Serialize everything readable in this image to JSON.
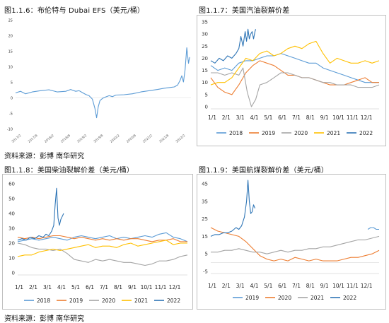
{
  "titles": {
    "p1": "图1.1.6：布伦特与 Dubai EFS（美元/桶）",
    "p2": "图1.1.7：美国汽油裂解价差",
    "p3": "图1.1.8：美国柴油裂解价差（美元/桶）",
    "p4": "图1.1.9：美国航煤裂解价差（美元/桶）"
  },
  "source1": "资料来源：彭博 南华研究",
  "source2": "资料来源：彭博 南华研究",
  "chart_data": [
    {
      "id": "p1",
      "type": "line",
      "title": "图1.1.6：布伦特与 Dubai EFS（美元/桶）",
      "ylim": [
        -10,
        25
      ],
      "yticks": [
        "25",
        "20",
        "15",
        "10",
        "5",
        "0",
        "-5",
        "-10"
      ],
      "xticks": [
        "2017/2",
        "2017/8",
        "2018/2",
        "2018/8",
        "2019/2",
        "2019/8",
        "2020/2",
        "2020/8",
        "2021/2",
        "2021/8",
        "2022/2"
      ],
      "series": [
        {
          "color": "#5b9bd5",
          "x": [
            0,
            0.3,
            0.6,
            1,
            1.5,
            2,
            2.5,
            3,
            3.3,
            3.6,
            3.8,
            4,
            4.2,
            4.4,
            4.6,
            4.75,
            4.85,
            4.95,
            5.05,
            5.2,
            5.4,
            5.6,
            5.8,
            6,
            6.5,
            7,
            7.5,
            8,
            8.5,
            8.9,
            9.2,
            9.5,
            9.7,
            9.85,
            9.95,
            10.05,
            10.15,
            10.25,
            10.35,
            10.42
          ],
          "values": [
            1.5,
            2.0,
            1.2,
            1.8,
            2.2,
            2.5,
            1.8,
            2.0,
            2.6,
            2.0,
            2.2,
            1.6,
            1.0,
            0.6,
            -0.5,
            -3.5,
            -6.5,
            -3.0,
            -1.0,
            -0.3,
            0.2,
            0.6,
            0.3,
            0.8,
            0.9,
            1.2,
            1.8,
            2.2,
            2.6,
            3.0,
            3.2,
            3.4,
            4.0,
            5.5,
            7.0,
            5.0,
            9.0,
            16.0,
            11.0,
            13.0
          ]
        }
      ]
    },
    {
      "id": "p2",
      "type": "line",
      "title": "图1.1.7：美国汽油裂解价差",
      "ylim": [
        0,
        35
      ],
      "yticks": [
        "35",
        "30",
        "25",
        "20",
        "15",
        "10",
        "5",
        "0"
      ],
      "categories": [
        "1/1",
        "2/1",
        "3/1",
        "4/1",
        "5/1",
        "6/1",
        "7/1",
        "8/1",
        "9/1",
        "10/1",
        "11/1",
        "12/1"
      ],
      "series": [
        {
          "name": "2018",
          "color": "#5b9bd5",
          "x": [
            0,
            0.5,
            1,
            1.5,
            2,
            2.5,
            3,
            3.5,
            4,
            4.5,
            5,
            5.5,
            6,
            6.5,
            7,
            7.5,
            8,
            8.5,
            9,
            9.5,
            10,
            10.5,
            11,
            11.5,
            12
          ],
          "values": [
            17,
            15,
            16,
            15,
            18,
            19,
            19,
            20,
            21,
            21,
            22,
            21,
            20,
            19,
            18,
            18,
            16,
            15,
            14,
            13,
            12,
            11,
            10,
            10,
            10
          ]
        },
        {
          "name": "2019",
          "color": "#ed7d31",
          "x": [
            0,
            0.5,
            1,
            1.5,
            2,
            2.5,
            3,
            3.5,
            4,
            4.5,
            5,
            5.5,
            6,
            6.5,
            7,
            7.5,
            8,
            8.5,
            9,
            9.5,
            10,
            10.5,
            11,
            11.5,
            12
          ],
          "values": [
            12,
            8,
            6,
            5,
            9,
            14,
            17,
            19,
            18,
            17,
            15,
            13,
            13,
            12,
            12,
            11,
            10,
            9,
            9,
            9,
            10,
            11,
            12,
            10,
            10
          ]
        },
        {
          "name": "2020",
          "color": "#a5a5a5",
          "x": [
            0,
            0.5,
            1,
            1.5,
            2,
            2.3,
            2.6,
            2.9,
            3.2,
            3.5,
            4,
            4.5,
            5,
            5.5,
            6,
            6.5,
            7,
            7.5,
            8,
            8.5,
            9,
            9.5,
            10,
            10.5,
            11,
            11.5,
            12
          ],
          "values": [
            14,
            14,
            13,
            14,
            13,
            16,
            6,
            0,
            3,
            9,
            10,
            12,
            14,
            14,
            13,
            12,
            12,
            11,
            10,
            10,
            9,
            9,
            9,
            8,
            8,
            8,
            9
          ]
        },
        {
          "name": "2021",
          "color": "#ffc000",
          "x": [
            0,
            0.5,
            1,
            1.5,
            2,
            2.5,
            3,
            3.5,
            4,
            4.5,
            5,
            5.5,
            6,
            6.5,
            7,
            7.5,
            8,
            8.5,
            9,
            9.5,
            10,
            10.5,
            11,
            11.5,
            12
          ],
          "values": [
            9,
            10,
            10,
            12,
            16,
            20,
            19,
            22,
            23,
            21,
            22,
            24,
            25,
            24,
            26,
            27,
            22,
            18,
            20,
            19,
            18,
            18,
            19,
            18,
            19
          ]
        },
        {
          "name": "2022",
          "color": "#2e75b6",
          "x": [
            0,
            0.3,
            0.6,
            0.9,
            1.2,
            1.5,
            1.8,
            2.0,
            2.15,
            2.3,
            2.45,
            2.55,
            2.65,
            2.75,
            2.85,
            2.95,
            3.05,
            3.15,
            3.2
          ],
          "values": [
            19,
            18,
            20,
            19,
            21,
            20,
            22,
            24,
            29,
            25,
            31,
            27,
            32,
            28,
            30,
            31,
            28,
            31,
            32
          ]
        }
      ]
    },
    {
      "id": "p3",
      "type": "line",
      "title": "图1.1.8：美国柴油裂解价差（美元/桶）",
      "ylim": [
        0,
        60
      ],
      "yticks": [
        "60",
        "50",
        "40",
        "30",
        "20",
        "10",
        "0"
      ],
      "categories": [
        "1/1",
        "2/1",
        "3/1",
        "4/1",
        "5/1",
        "6/1",
        "7/1",
        "8/1",
        "9/1",
        "10/1",
        "11/1",
        "12/1"
      ],
      "series": [
        {
          "name": "2018",
          "color": "#5b9bd5",
          "x": [
            0,
            0.5,
            1,
            1.5,
            2,
            2.5,
            3,
            3.5,
            4,
            4.5,
            5,
            5.5,
            6,
            6.5,
            7,
            7.5,
            8,
            8.5,
            9,
            9.5,
            10,
            10.5,
            11,
            11.5,
            12
          ],
          "values": [
            21,
            22,
            23,
            22,
            23,
            24,
            23,
            22,
            24,
            25,
            24,
            23,
            24,
            25,
            23,
            24,
            23,
            24,
            25,
            24,
            26,
            27,
            24,
            23,
            21
          ]
        },
        {
          "name": "2019",
          "color": "#ed7d31",
          "x": [
            0,
            0.5,
            1,
            1.5,
            2,
            2.5,
            3,
            3.5,
            4,
            4.5,
            5,
            5.5,
            6,
            6.5,
            7,
            7.5,
            8,
            8.5,
            9,
            9.5,
            10,
            10.5,
            11,
            11.5,
            12
          ],
          "values": [
            24,
            23,
            24,
            23,
            24,
            25,
            25,
            24,
            23,
            24,
            23,
            22,
            23,
            22,
            23,
            22,
            23,
            23,
            22,
            21,
            22,
            22,
            23,
            21,
            21
          ]
        },
        {
          "name": "2020",
          "color": "#a5a5a5",
          "x": [
            0,
            0.5,
            1,
            1.5,
            2,
            2.5,
            3,
            3.5,
            4,
            4.5,
            5,
            5.5,
            6,
            6.5,
            7,
            7.5,
            8,
            8.5,
            9,
            9.5,
            10,
            10.5,
            11,
            11.5,
            12
          ],
          "values": [
            20,
            19,
            17,
            16,
            16,
            15,
            16,
            13,
            9,
            8,
            7,
            9,
            8,
            9,
            8,
            7,
            7,
            6,
            5,
            6,
            8,
            8,
            9,
            11,
            12
          ]
        },
        {
          "name": "2021",
          "color": "#ffc000",
          "x": [
            0,
            0.5,
            1,
            1.5,
            2,
            2.5,
            3,
            3.5,
            4,
            4.5,
            5,
            5.5,
            6,
            6.5,
            7,
            7.5,
            8,
            8.5,
            9,
            9.5,
            10,
            10.5,
            11,
            11.5,
            12
          ],
          "values": [
            11,
            12,
            12,
            14,
            15,
            16,
            15,
            16,
            17,
            18,
            19,
            17,
            18,
            18,
            17,
            19,
            20,
            18,
            19,
            20,
            21,
            22,
            19,
            20,
            20
          ]
        },
        {
          "name": "2022",
          "color": "#2e75b6",
          "x": [
            0,
            0.3,
            0.6,
            0.9,
            1.2,
            1.5,
            1.8,
            2.0,
            2.2,
            2.4,
            2.55,
            2.65,
            2.75,
            2.85,
            2.95,
            3.05,
            3.15,
            3.25
          ],
          "values": [
            22,
            23,
            22,
            24,
            23,
            25,
            24,
            26,
            25,
            28,
            32,
            46,
            57,
            37,
            32,
            36,
            38,
            40
          ]
        }
      ]
    },
    {
      "id": "p4",
      "type": "line",
      "title": "图1.1.9：美国航煤裂解价差（美元/桶）",
      "ylim": [
        -5,
        45
      ],
      "yticks": [
        "45",
        "35",
        "25",
        "15",
        "5",
        "-5"
      ],
      "categories": [
        "1/1",
        "2/1",
        "3/1",
        "4/1",
        "5/1",
        "6/1",
        "7/1",
        "8/1",
        "9/1",
        "10/1",
        "11/1",
        "12/1"
      ],
      "series": [
        {
          "name": "2019",
          "color": "#5b9bd5",
          "x": [
            11.2,
            11.4,
            11.6,
            11.8,
            12
          ],
          "values": [
            19,
            20,
            20,
            19,
            19
          ]
        },
        {
          "name": "2020",
          "color": "#ed7d31",
          "x": [
            0,
            0.5,
            1,
            1.5,
            2,
            2.5,
            3,
            3.5,
            4,
            4.5,
            5,
            5.5,
            6,
            6.5,
            7,
            7.5,
            8,
            8.5,
            9,
            9.5,
            10,
            10.5,
            11,
            11.5,
            12
          ],
          "values": [
            20,
            18,
            17,
            16,
            15,
            12,
            8,
            4,
            2,
            1,
            2,
            1,
            3,
            2,
            1,
            2,
            1,
            1,
            1,
            2,
            3,
            3,
            4,
            5,
            7
          ]
        },
        {
          "name": "2021",
          "color": "#a5a5a5",
          "x": [
            0,
            0.5,
            1,
            1.5,
            2,
            2.5,
            3,
            3.5,
            4,
            4.5,
            5,
            5.5,
            6,
            6.5,
            7,
            7.5,
            8,
            8.5,
            9,
            9.5,
            10,
            10.5,
            11,
            11.5,
            12
          ],
          "values": [
            6,
            6,
            7,
            7,
            8,
            7,
            6,
            6,
            5,
            6,
            7,
            6,
            7,
            7,
            8,
            8,
            9,
            9,
            10,
            11,
            12,
            13,
            13,
            14,
            15
          ]
        },
        {
          "name": "2022",
          "color": "#2e75b6",
          "x": [
            0,
            0.3,
            0.6,
            0.9,
            1.2,
            1.5,
            1.8,
            2.0,
            2.2,
            2.4,
            2.55,
            2.65,
            2.75,
            2.85,
            2.95,
            3.05,
            3.15
          ],
          "values": [
            15,
            16,
            16,
            17,
            17,
            18,
            20,
            19,
            21,
            26,
            35,
            47,
            35,
            28,
            29,
            33,
            31
          ]
        }
      ]
    }
  ]
}
